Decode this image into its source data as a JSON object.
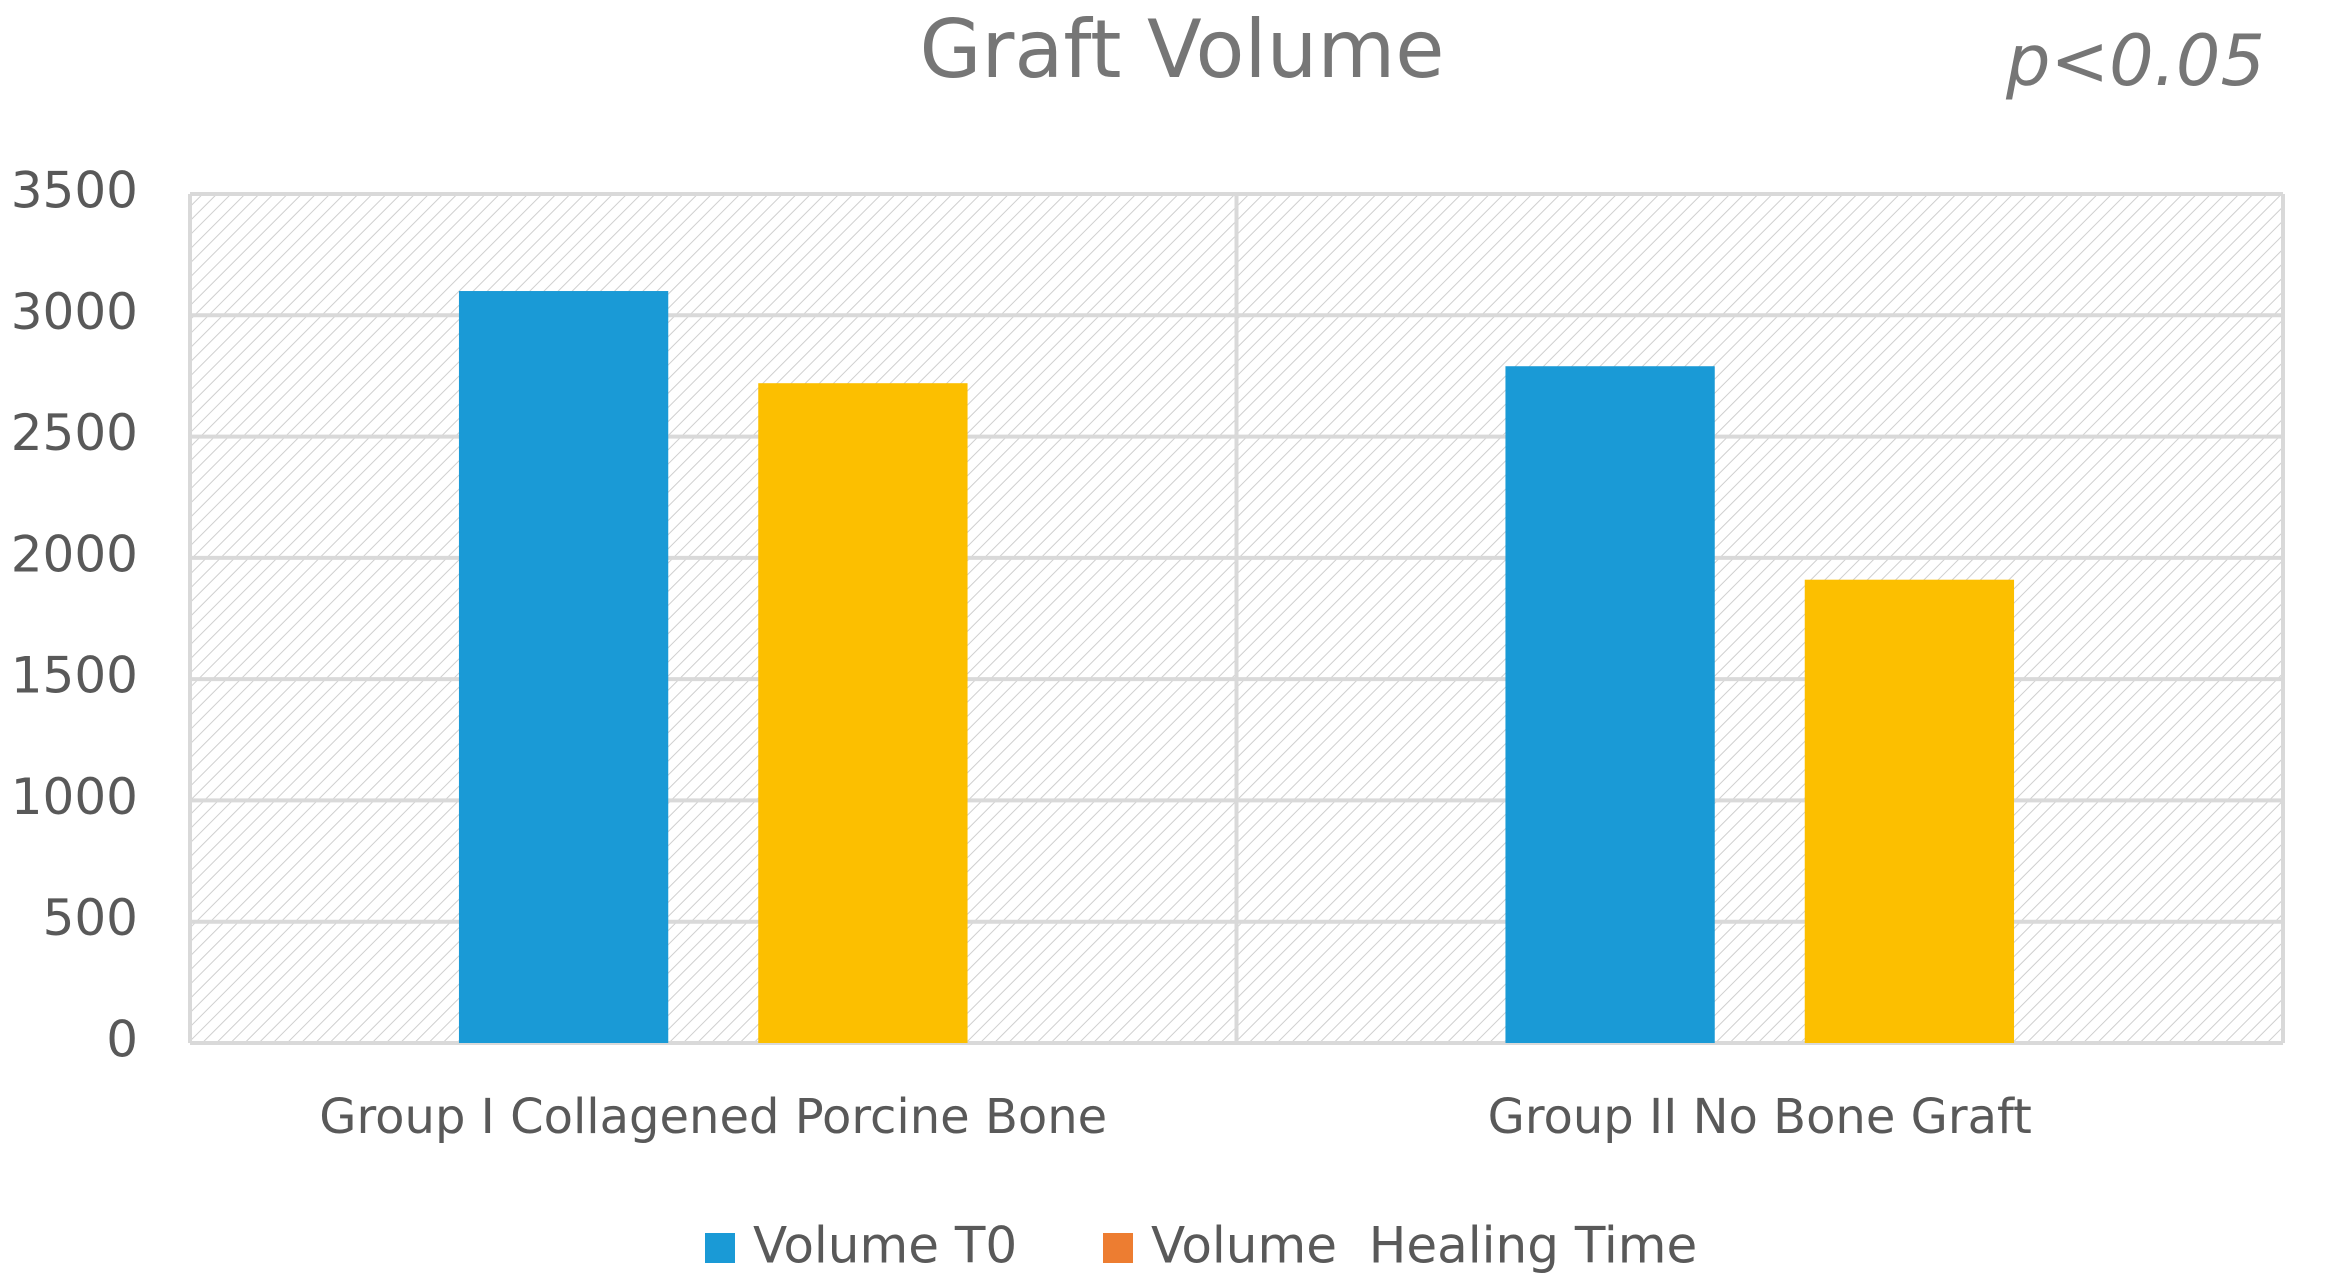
{
  "chart_data": {
    "type": "bar",
    "title": "Graft Volume",
    "annotation": "p<0.05",
    "categories": [
      "Group I Collagened Porcine Bone",
      "Group II No Bone Graft"
    ],
    "series": [
      {
        "name": "Volume T0",
        "color": "#1a9ad6",
        "legend_color": "#1a9ad6",
        "values": [
          3100,
          2790
        ]
      },
      {
        "name": "Volume  Healing Time",
        "color": "#fcbf00",
        "legend_color": "#ed7d31",
        "values": [
          2720,
          1910
        ]
      }
    ],
    "ylim": [
      0,
      3500
    ],
    "yticks": [
      0,
      500,
      1000,
      1500,
      2000,
      2500,
      3000,
      3500
    ],
    "grid": true,
    "legend": "bottom"
  }
}
